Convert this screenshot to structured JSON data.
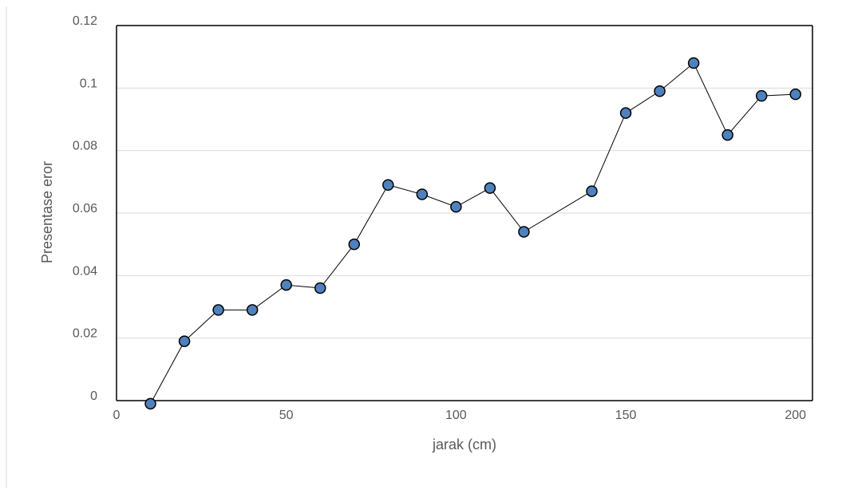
{
  "chart_data": {
    "type": "scatter",
    "title": "",
    "xlabel": "jarak (cm)",
    "ylabel": "Presentase eror",
    "xlim": [
      0,
      205
    ],
    "ylim": [
      0,
      0.12
    ],
    "x_ticks": [
      "0",
      "50",
      "100",
      "150",
      "200"
    ],
    "y_ticks": [
      "0",
      "0.02",
      "0.04",
      "0.06",
      "0.08",
      "0.1",
      "0.12"
    ],
    "grid": "horizontal",
    "legend": "none",
    "line_style": "connected",
    "series": [
      {
        "x": [
          10,
          20,
          30,
          40,
          50,
          60,
          70,
          80,
          90,
          100,
          110,
          120,
          140,
          150,
          160,
          170,
          180,
          190,
          200
        ],
        "values": [
          -0.001,
          0.019,
          0.029,
          0.029,
          0.037,
          0.036,
          0.05,
          0.069,
          0.066,
          0.062,
          0.068,
          0.054,
          0.067,
          0.092,
          0.099,
          0.108,
          0.085,
          0.0975,
          0.098
        ]
      }
    ],
    "colors": {
      "marker_fill": "#4f81bd",
      "marker_stroke": "#000000",
      "line": "#000000",
      "grid": "#d9d9d9",
      "text": "#595959"
    }
  }
}
